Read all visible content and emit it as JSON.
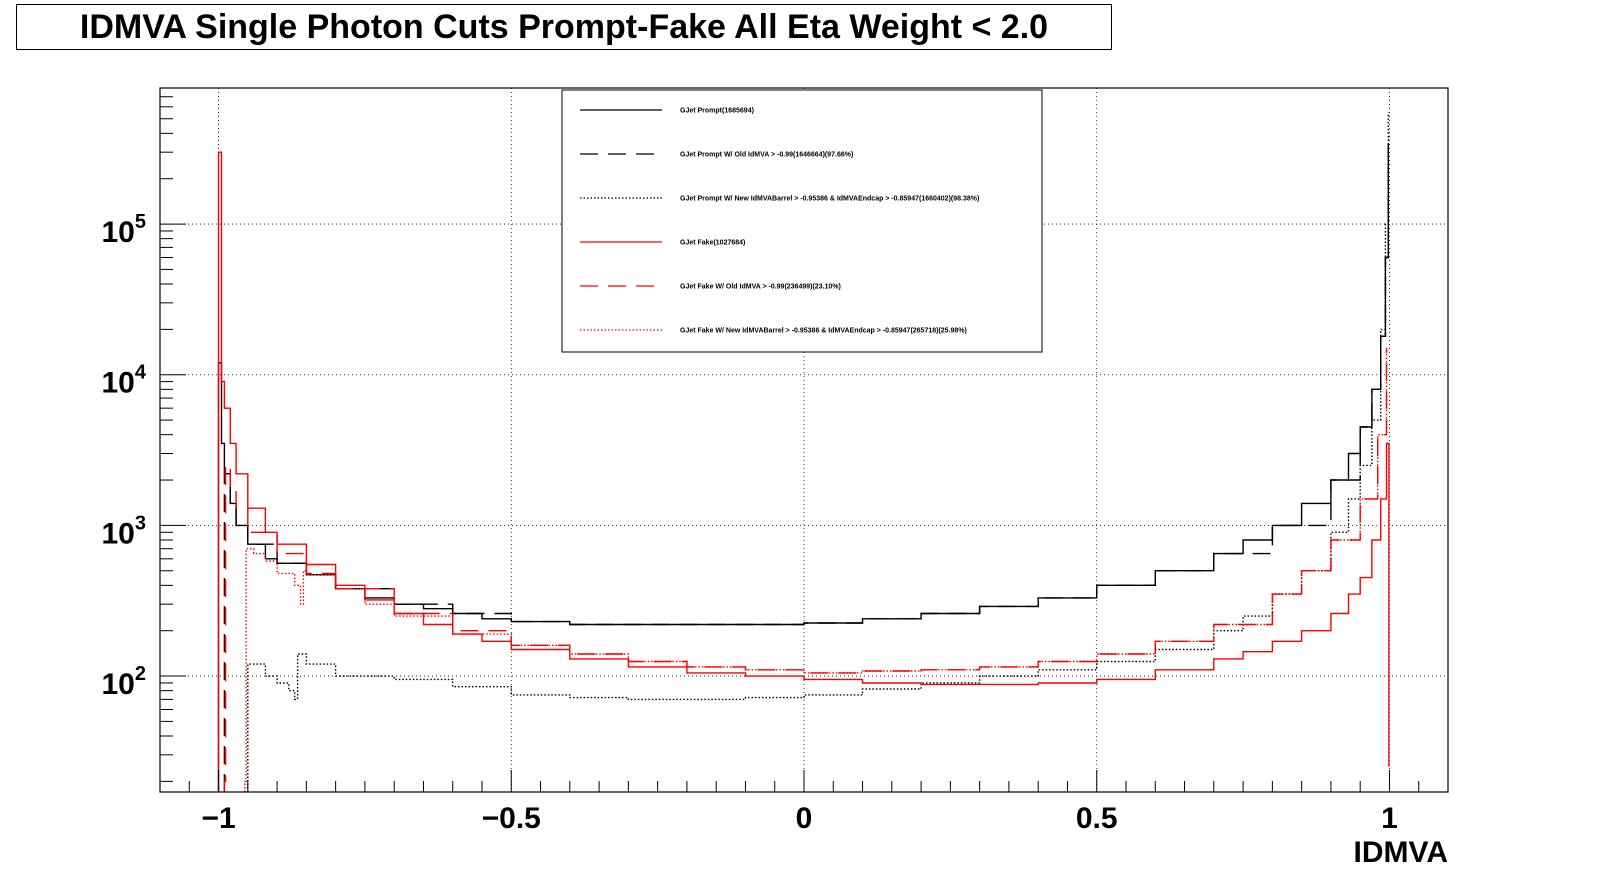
{
  "title": "IDMVA Single Photon Cuts Prompt-Fake All Eta Weight < 2.0",
  "chart_data": {
    "type": "line",
    "title": "IDMVA Single Photon Cuts Prompt-Fake All Eta Weight < 2.0",
    "xlabel": "IDMVA",
    "ylabel": "",
    "xlim": [
      -1.1,
      1.1
    ],
    "ylim": [
      17,
      800000
    ],
    "yscale": "log",
    "grid": true,
    "legend_position": "top-center",
    "x_ticks": [
      "−1",
      "−0.5",
      "0",
      "0.5",
      "1"
    ],
    "y_ticks": [
      "10^2",
      "10^3",
      "10^4",
      "10^5"
    ],
    "x_tick_values": [
      -1,
      -0.5,
      0,
      0.5,
      1
    ],
    "y_tick_values": [
      100,
      1000,
      10000,
      100000
    ],
    "series": [
      {
        "name": "GJet Prompt(1685694)",
        "color": "#000000",
        "style": "solid",
        "points": [
          [
            -1.0,
            12000
          ],
          [
            -0.995,
            3500
          ],
          [
            -0.99,
            2200
          ],
          [
            -0.98,
            1400
          ],
          [
            -0.97,
            1000
          ],
          [
            -0.95,
            750
          ],
          [
            -0.92,
            600
          ],
          [
            -0.9,
            560
          ],
          [
            -0.85,
            470
          ],
          [
            -0.8,
            380
          ],
          [
            -0.75,
            330
          ],
          [
            -0.7,
            300
          ],
          [
            -0.65,
            280
          ],
          [
            -0.6,
            260
          ],
          [
            -0.55,
            240
          ],
          [
            -0.5,
            230
          ],
          [
            -0.4,
            220
          ],
          [
            -0.3,
            220
          ],
          [
            -0.2,
            220
          ],
          [
            -0.1,
            220
          ],
          [
            0.0,
            225
          ],
          [
            0.1,
            240
          ],
          [
            0.2,
            260
          ],
          [
            0.3,
            290
          ],
          [
            0.4,
            330
          ],
          [
            0.5,
            400
          ],
          [
            0.6,
            500
          ],
          [
            0.7,
            650
          ],
          [
            0.75,
            800
          ],
          [
            0.8,
            1000
          ],
          [
            0.85,
            1400
          ],
          [
            0.9,
            2000
          ],
          [
            0.93,
            3000
          ],
          [
            0.95,
            4500
          ],
          [
            0.97,
            8000
          ],
          [
            0.985,
            18000
          ],
          [
            0.993,
            60000
          ],
          [
            0.998,
            340000
          ]
        ]
      },
      {
        "name": "GJet Prompt W/ Old IdMVA > -0.99(1646664)(97.66%)",
        "color": "#000000",
        "style": "dashed",
        "points": [
          [
            -0.99,
            2200
          ],
          [
            -0.98,
            1400
          ],
          [
            -0.97,
            1000
          ],
          [
            -0.95,
            750
          ],
          [
            -0.9,
            560
          ],
          [
            -0.85,
            470
          ],
          [
            -0.8,
            380
          ],
          [
            -0.7,
            300
          ],
          [
            -0.6,
            260
          ],
          [
            -0.5,
            230
          ],
          [
            -0.4,
            220
          ],
          [
            -0.3,
            220
          ],
          [
            -0.2,
            220
          ],
          [
            -0.1,
            220
          ],
          [
            0.0,
            225
          ],
          [
            0.1,
            240
          ],
          [
            0.2,
            260
          ],
          [
            0.3,
            290
          ],
          [
            0.4,
            330
          ],
          [
            0.5,
            400
          ],
          [
            0.6,
            500
          ],
          [
            0.7,
            650
          ],
          [
            0.8,
            1000
          ],
          [
            0.9,
            2000
          ],
          [
            0.95,
            4500
          ],
          [
            0.97,
            8000
          ],
          [
            0.985,
            18000
          ],
          [
            0.993,
            60000
          ],
          [
            0.998,
            340000
          ]
        ]
      },
      {
        "name": "GJet Prompt W/ New IdMVABarrel > -0.95386 & IdMVAEndcap > -0.85947(1660402)(98.38%)",
        "color": "#000000",
        "style": "dotted",
        "points": [
          [
            -0.95,
            120
          ],
          [
            -0.92,
            100
          ],
          [
            -0.9,
            90
          ],
          [
            -0.88,
            80
          ],
          [
            -0.87,
            70
          ],
          [
            -0.865,
            140
          ],
          [
            -0.85,
            120
          ],
          [
            -0.8,
            100
          ],
          [
            -0.7,
            95
          ],
          [
            -0.6,
            85
          ],
          [
            -0.5,
            75
          ],
          [
            -0.4,
            72
          ],
          [
            -0.3,
            70
          ],
          [
            -0.2,
            70
          ],
          [
            -0.1,
            72
          ],
          [
            0.0,
            75
          ],
          [
            0.1,
            82
          ],
          [
            0.2,
            90
          ],
          [
            0.3,
            100
          ],
          [
            0.4,
            110
          ],
          [
            0.5,
            125
          ],
          [
            0.6,
            150
          ],
          [
            0.7,
            200
          ],
          [
            0.75,
            250
          ],
          [
            0.8,
            350
          ],
          [
            0.85,
            500
          ],
          [
            0.9,
            900
          ],
          [
            0.93,
            1500
          ],
          [
            0.95,
            2500
          ],
          [
            0.97,
            5000
          ],
          [
            0.985,
            20000
          ],
          [
            0.993,
            100000
          ],
          [
            0.998,
            550000
          ]
        ]
      },
      {
        "name": "GJet Fake(1027684)",
        "color": "#ff0000",
        "style": "solid",
        "points": [
          [
            -1.0,
            300000
          ],
          [
            -0.995,
            9000
          ],
          [
            -0.99,
            6000
          ],
          [
            -0.98,
            3500
          ],
          [
            -0.97,
            2200
          ],
          [
            -0.95,
            1300
          ],
          [
            -0.92,
            900
          ],
          [
            -0.9,
            750
          ],
          [
            -0.85,
            550
          ],
          [
            -0.8,
            400
          ],
          [
            -0.75,
            320
          ],
          [
            -0.7,
            260
          ],
          [
            -0.65,
            220
          ],
          [
            -0.6,
            190
          ],
          [
            -0.55,
            170
          ],
          [
            -0.5,
            150
          ],
          [
            -0.4,
            130
          ],
          [
            -0.3,
            115
          ],
          [
            -0.2,
            105
          ],
          [
            -0.1,
            100
          ],
          [
            0.0,
            95
          ],
          [
            0.1,
            90
          ],
          [
            0.2,
            88
          ],
          [
            0.3,
            88
          ],
          [
            0.4,
            90
          ],
          [
            0.5,
            95
          ],
          [
            0.6,
            110
          ],
          [
            0.7,
            130
          ],
          [
            0.75,
            145
          ],
          [
            0.8,
            170
          ],
          [
            0.85,
            200
          ],
          [
            0.9,
            260
          ],
          [
            0.93,
            350
          ],
          [
            0.95,
            450
          ],
          [
            0.97,
            800
          ],
          [
            0.985,
            1500
          ],
          [
            0.995,
            3500
          ],
          [
            0.999,
            25
          ]
        ]
      },
      {
        "name": "GJet Fake W/ Old IdMVA > -0.99(236499)(23.10%)",
        "color": "#ff0000",
        "style": "dashed",
        "points": [
          [
            -0.99,
            20
          ],
          [
            -0.988,
            2500
          ],
          [
            -0.98,
            1800
          ],
          [
            -0.97,
            1300
          ],
          [
            -0.95,
            900
          ],
          [
            -0.9,
            650
          ],
          [
            -0.85,
            480
          ],
          [
            -0.8,
            380
          ],
          [
            -0.7,
            260
          ],
          [
            -0.6,
            200
          ],
          [
            -0.5,
            160
          ],
          [
            -0.4,
            140
          ],
          [
            -0.3,
            125
          ],
          [
            -0.2,
            115
          ],
          [
            -0.1,
            110
          ],
          [
            0.0,
            105
          ],
          [
            0.1,
            108
          ],
          [
            0.2,
            110
          ],
          [
            0.3,
            115
          ],
          [
            0.4,
            125
          ],
          [
            0.5,
            140
          ],
          [
            0.6,
            170
          ],
          [
            0.7,
            220
          ],
          [
            0.8,
            350
          ],
          [
            0.85,
            500
          ],
          [
            0.9,
            800
          ],
          [
            0.95,
            1500
          ],
          [
            0.98,
            4000
          ],
          [
            0.995,
            15000
          ]
        ]
      },
      {
        "name": "GJet Fake W/ New IdMVABarrel > -0.95386 & IdMVAEndcap > -0.85947(265718)(25.98%)",
        "color": "#ff0000",
        "style": "dotted",
        "points": [
          [
            -0.955,
            20
          ],
          [
            -0.953,
            700
          ],
          [
            -0.94,
            650
          ],
          [
            -0.92,
            580
          ],
          [
            -0.9,
            480
          ],
          [
            -0.87,
            400
          ],
          [
            -0.86,
            300
          ],
          [
            -0.855,
            500
          ],
          [
            -0.85,
            470
          ],
          [
            -0.8,
            380
          ],
          [
            -0.75,
            300
          ],
          [
            -0.7,
            250
          ],
          [
            -0.6,
            190
          ],
          [
            -0.5,
            160
          ],
          [
            -0.4,
            140
          ],
          [
            -0.3,
            125
          ],
          [
            -0.2,
            115
          ],
          [
            -0.1,
            110
          ],
          [
            0.0,
            105
          ],
          [
            0.1,
            108
          ],
          [
            0.2,
            110
          ],
          [
            0.3,
            115
          ],
          [
            0.4,
            125
          ],
          [
            0.5,
            140
          ],
          [
            0.6,
            170
          ],
          [
            0.7,
            220
          ],
          [
            0.8,
            350
          ],
          [
            0.85,
            500
          ],
          [
            0.9,
            800
          ],
          [
            0.95,
            1500
          ],
          [
            0.98,
            4000
          ],
          [
            0.995,
            15000
          ]
        ]
      }
    ]
  }
}
